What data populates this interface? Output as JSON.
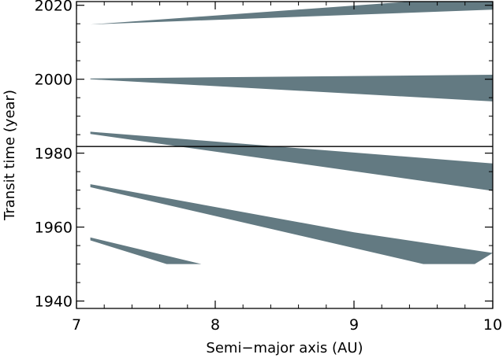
{
  "chart_data": {
    "type": "area",
    "title": "",
    "xlabel": "Semi−major axis (AU)",
    "ylabel": "Transit time (year)",
    "xlim": [
      7,
      10
    ],
    "ylim": [
      1938,
      2021
    ],
    "x_ticks": [
      "7",
      "8",
      "9",
      "10"
    ],
    "y_ticks": [
      "1940",
      "1960",
      "1980",
      "2000",
      "2020"
    ],
    "reference_line_y": 1981.8,
    "grid": false,
    "fill_color": "#637A82",
    "bands": [
      {
        "upper": [
          [
            7.1,
            2014.8
          ],
          [
            9.4,
            2021
          ],
          [
            10.0,
            2021
          ]
        ],
        "lower": [
          [
            7.1,
            2014.8
          ],
          [
            10.0,
            2018.8
          ]
        ]
      },
      {
        "upper": [
          [
            7.1,
            2000.2
          ],
          [
            10.0,
            2001.2
          ]
        ],
        "lower": [
          [
            7.1,
            2000.0
          ],
          [
            10.0,
            1994.0
          ]
        ]
      },
      {
        "upper": [
          [
            7.1,
            1985.8
          ],
          [
            10.0,
            1977.2
          ]
        ],
        "lower": [
          [
            7.1,
            1985.2
          ],
          [
            10.0,
            1969.8
          ]
        ]
      },
      {
        "upper": [
          [
            7.1,
            1971.6
          ],
          [
            9.0,
            1958.6
          ],
          [
            10.0,
            1953.0
          ]
        ],
        "lower": [
          [
            7.1,
            1970.8
          ],
          [
            9.5,
            1950.0
          ],
          [
            9.87,
            1950.0
          ]
        ]
      },
      {
        "upper": [
          [
            7.1,
            1957.2
          ],
          [
            7.9,
            1950.0
          ]
        ],
        "lower": [
          [
            7.1,
            1956.4
          ],
          [
            7.65,
            1950.0
          ]
        ]
      }
    ]
  }
}
